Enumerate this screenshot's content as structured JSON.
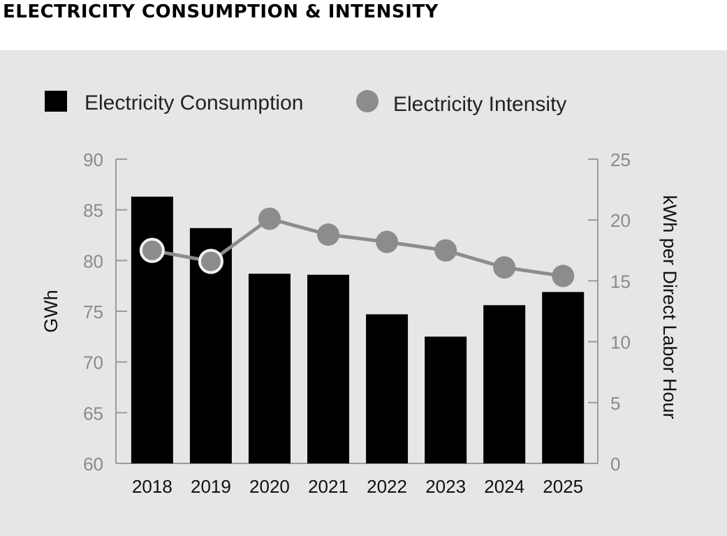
{
  "title": "ELECTRICITY CONSUMPTION & INTENSITY",
  "chart_data": {
    "type": "bar+line",
    "categories": [
      "2018",
      "2019",
      "2020",
      "2021",
      "2022",
      "2023",
      "2024",
      "2025"
    ],
    "series": [
      {
        "name": "Electricity Consumption",
        "type": "bar",
        "axis": "left",
        "color": "#000000",
        "values": [
          86.3,
          83.2,
          78.7,
          78.6,
          74.7,
          72.5,
          75.6,
          76.9
        ]
      },
      {
        "name": "Electricity Intensity",
        "type": "line",
        "axis": "right",
        "color": "#8c8c8c",
        "values": [
          17.5,
          16.6,
          20.1,
          18.8,
          18.2,
          17.5,
          16.1,
          15.4
        ]
      }
    ],
    "left_axis": {
      "label": "GWh",
      "min": 60,
      "max": 90,
      "ticks": [
        60,
        65,
        70,
        75,
        80,
        85,
        90
      ]
    },
    "right_axis": {
      "label": "kWh per Direct Labor Hour",
      "min": 0,
      "max": 25,
      "ticks": [
        0,
        5,
        10,
        15,
        20,
        25
      ]
    },
    "legend": "top",
    "grid": false
  }
}
